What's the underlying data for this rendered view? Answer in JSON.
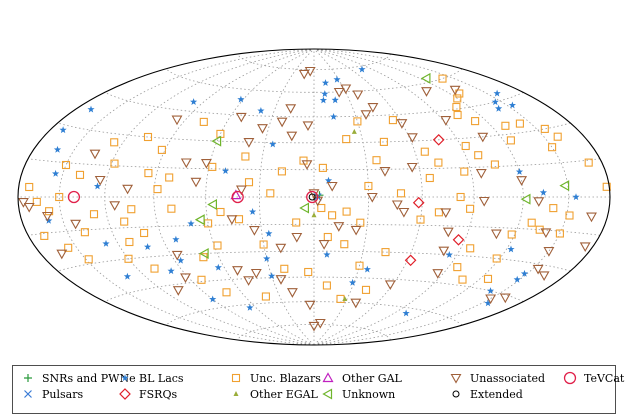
{
  "chart_data": {
    "type": "scatter",
    "projection": "hammer-aitoff (all-sky, galactic longitude vs latitude)",
    "grid": true,
    "legend_position": "bottom",
    "xlabel": "",
    "ylabel": "",
    "xlim": [
      -180,
      180
    ],
    "ylim": [
      -90,
      90
    ],
    "legend": [
      {
        "key": "snr",
        "label": "SNRs and PWNe",
        "marker": "plus",
        "color": "#2a9a3c"
      },
      {
        "key": "psr",
        "label": "Pulsars",
        "marker": "cross",
        "color": "#3a7bd5"
      },
      {
        "key": "bll",
        "label": "BL Lacs",
        "marker": "star",
        "color": "#2f7fd3"
      },
      {
        "key": "fsrq",
        "label": "FSRQs",
        "marker": "diamond",
        "color": "#e0202a"
      },
      {
        "key": "bcu",
        "label": "Unc. Blazars",
        "marker": "square",
        "color": "#f0a030"
      },
      {
        "key": "egal",
        "label": "Other EGAL",
        "marker": "tri-small",
        "color": "#9aad3a"
      },
      {
        "key": "gal",
        "label": "Other GAL",
        "marker": "tri-up",
        "color": "#c020c0"
      },
      {
        "key": "unk",
        "label": "Unknown",
        "marker": "tri-left",
        "color": "#6fb52c"
      },
      {
        "key": "unas",
        "label": "Unassociated",
        "marker": "tri-down",
        "color": "#a0603a"
      },
      {
        "key": "ext",
        "label": "Extended",
        "marker": "circle",
        "color": "#000000"
      },
      {
        "key": "tev",
        "label": "TeVCat",
        "marker": "circle-big",
        "color": "#e0204a"
      }
    ],
    "series": [
      {
        "key": "snr",
        "points": [
          [
            -3,
            1
          ]
        ]
      },
      {
        "key": "psr",
        "points": [
          [
            -2,
            0
          ]
        ]
      },
      {
        "key": "bll",
        "points": [
          [
            -76,
            73
          ],
          [
            -28,
            68
          ],
          [
            -13,
            66
          ],
          [
            -10,
            59
          ],
          [
            -18,
            55
          ],
          [
            -8,
            55
          ],
          [
            -158,
            48
          ],
          [
            -145,
            45
          ],
          [
            -154,
            42
          ],
          [
            -140,
            42
          ],
          [
            -14,
            45
          ],
          [
            62,
            54
          ],
          [
            98,
            50
          ],
          [
            40,
            48
          ],
          [
            168,
            38
          ],
          [
            162,
            20
          ],
          [
            155,
            10
          ],
          [
            125,
            5
          ],
          [
            -120,
            12
          ],
          [
            -133,
            2
          ],
          [
            -8,
            9
          ],
          [
            25,
            29
          ],
          [
            34,
            -8
          ],
          [
            70,
            -14
          ],
          [
            82,
            -22
          ],
          [
            102,
            -25
          ],
          [
            86,
            -33
          ],
          [
            98,
            -38
          ],
          [
            64,
            -38
          ],
          [
            66,
            -62
          ],
          [
            26,
            -20
          ],
          [
            -8,
            -32
          ],
          [
            -29,
            -48
          ],
          [
            -36,
            -40
          ],
          [
            -123,
            -25
          ],
          [
            -148,
            -35
          ],
          [
            -140,
            -45
          ],
          [
            -155,
            -50
          ],
          [
            -148,
            -38
          ],
          [
            -85,
            -30
          ],
          [
            30,
            -34
          ],
          [
            160,
            -10
          ],
          [
            128,
            -22
          ],
          [
            50,
            14
          ],
          [
            30,
            -44
          ],
          [
            -102,
            -63
          ],
          [
            90,
            -55
          ],
          [
            133,
            -38
          ],
          [
            -155,
            0
          ],
          [
            170,
            28
          ]
        ]
      },
      {
        "key": "fsrq",
        "points": [
          [
            -78,
            30
          ],
          [
            -86,
            -22
          ],
          [
            -62,
            -34
          ],
          [
            -58,
            -3
          ]
        ]
      },
      {
        "key": "bcu",
        "points": [
          [
            -178,
            4
          ],
          [
            -156,
            30
          ],
          [
            -150,
            22
          ],
          [
            -140,
            -5
          ],
          [
            -135,
            -15
          ],
          [
            -130,
            34
          ],
          [
            -125,
            27
          ],
          [
            -112,
            38
          ],
          [
            -110,
            46
          ],
          [
            -104,
            42
          ],
          [
            -106,
            16
          ],
          [
            -98,
            21
          ],
          [
            -93,
            26
          ],
          [
            -86,
            13
          ],
          [
            -82,
            0
          ],
          [
            -72,
            18
          ],
          [
            -66,
            24
          ],
          [
            -65,
            10
          ],
          [
            -55,
            42
          ],
          [
            -43,
            30
          ],
          [
            -36,
            20
          ],
          [
            -30,
            6
          ],
          [
            -26,
            -14
          ],
          [
            -18,
            -8
          ],
          [
            -10,
            -10
          ],
          [
            -5,
            16
          ],
          [
            6,
            20
          ],
          [
            -20,
            32
          ],
          [
            -30,
            42
          ],
          [
            -70,
            -8
          ],
          [
            -60,
            -12
          ],
          [
            -88,
            -6
          ],
          [
            -96,
            -26
          ],
          [
            -96,
            -36
          ],
          [
            -108,
            -42
          ],
          [
            -118,
            -30
          ],
          [
            -118,
            -18
          ],
          [
            -128,
            -12
          ],
          [
            -126,
            -40
          ],
          [
            -150,
            -16
          ],
          [
            -44,
            -30
          ],
          [
            -30,
            -38
          ],
          [
            -42,
            -52
          ],
          [
            -10,
            -50
          ],
          [
            4,
            -42
          ],
          [
            20,
            -40
          ],
          [
            30,
            -26
          ],
          [
            42,
            -12
          ],
          [
            52,
            -8
          ],
          [
            60,
            -14
          ],
          [
            58,
            -26
          ],
          [
            70,
            -32
          ],
          [
            80,
            -6
          ],
          [
            88,
            4
          ],
          [
            95,
            12
          ],
          [
            104,
            -6
          ],
          [
            110,
            -12
          ],
          [
            118,
            16
          ],
          [
            126,
            26
          ],
          [
            138,
            10
          ],
          [
            150,
            0
          ],
          [
            158,
            -6
          ],
          [
            166,
            -2
          ],
          [
            172,
            4
          ],
          [
            148,
            -28
          ],
          [
            120,
            -30
          ],
          [
            108,
            -36
          ],
          [
            82,
            -44
          ],
          [
            72,
            -52
          ],
          [
            100,
            -18
          ],
          [
            60,
            34
          ],
          [
            76,
            40
          ],
          [
            92,
            24
          ],
          [
            58,
            16
          ],
          [
            36,
            8
          ],
          [
            18,
            14
          ],
          [
            24,
            2
          ],
          [
            -8,
            -22
          ],
          [
            -18,
            -26
          ],
          [
            -48,
            2
          ],
          [
            -24,
            -58
          ],
          [
            -152,
            -8
          ],
          [
            -160,
            26
          ],
          [
            -170,
            14
          ],
          [
            -142,
            34
          ],
          [
            -140,
            60
          ],
          [
            -128,
            52
          ],
          [
            -120,
            50
          ],
          [
            40,
            22
          ],
          [
            82,
            10
          ],
          [
            112,
            -22
          ],
          [
            138,
            -16
          ],
          [
            150,
            14
          ],
          [
            156,
            -22
          ],
          [
            106,
            30
          ],
          [
            128,
            -8
          ],
          [
            168,
            -16
          ],
          [
            42,
            -56
          ],
          [
            -4,
            -6
          ],
          [
            10,
            -14
          ]
        ]
      },
      {
        "key": "egal",
        "points": [
          [
            -26,
            36
          ],
          [
            0,
            -10
          ],
          [
            -28,
            -58
          ]
        ]
      },
      {
        "key": "gal",
        "points": [
          [
            43,
            1
          ]
        ]
      },
      {
        "key": "unk",
        "points": [
          [
            -126,
            62
          ],
          [
            -148,
            5
          ],
          [
            -122,
            -1
          ],
          [
            5,
            -6
          ],
          [
            56,
            -4
          ],
          [
            64,
            -12
          ],
          [
            68,
            -30
          ],
          [
            60,
            30
          ]
        ]
      },
      {
        "key": "unas",
        "points": [
          [
            -40,
            58
          ],
          [
            -32,
            62
          ],
          [
            -24,
            60
          ],
          [
            -46,
            50
          ],
          [
            -38,
            46
          ],
          [
            -60,
            40
          ],
          [
            -62,
            32
          ],
          [
            -56,
            16
          ],
          [
            -40,
            14
          ],
          [
            -32,
            0
          ],
          [
            -46,
            -4
          ],
          [
            -50,
            -8
          ],
          [
            -74,
            -8
          ],
          [
            -78,
            -18
          ],
          [
            -80,
            -28
          ],
          [
            -108,
            -18
          ],
          [
            -140,
            -16
          ],
          [
            -150,
            -24
          ],
          [
            -164,
            -34
          ],
          [
            -154,
            -32
          ],
          [
            -160,
            -46
          ],
          [
            -130,
            54
          ],
          [
            -108,
            30
          ],
          [
            -120,
            8
          ],
          [
            -130,
            -2
          ],
          [
            -96,
            12
          ],
          [
            -58,
            -48
          ],
          [
            -40,
            -60
          ],
          [
            -10,
            -74
          ],
          [
            0,
            -76
          ],
          [
            4,
            -62
          ],
          [
            18,
            -54
          ],
          [
            24,
            -46
          ],
          [
            40,
            -42
          ],
          [
            48,
            -46
          ],
          [
            52,
            -40
          ],
          [
            86,
            -30
          ],
          [
            92,
            -42
          ],
          [
            46,
            -12
          ],
          [
            34,
            -18
          ],
          [
            20,
            -28
          ],
          [
            10,
            -22
          ],
          [
            -14,
            -16
          ],
          [
            -6,
            -26
          ],
          [
            -2,
            -2
          ],
          [
            -10,
            6
          ],
          [
            4,
            40
          ],
          [
            14,
            34
          ],
          [
            18,
            50
          ],
          [
            22,
            42
          ],
          [
            34,
            38
          ],
          [
            40,
            30
          ],
          [
            52,
            44
          ],
          [
            62,
            18
          ],
          [
            66,
            8
          ],
          [
            74,
            18
          ],
          [
            96,
            40
          ],
          [
            106,
            4
          ],
          [
            114,
            -4
          ],
          [
            124,
            8
          ],
          [
            134,
            20
          ],
          [
            142,
            -12
          ],
          [
            160,
            -8
          ],
          [
            164,
            -24
          ],
          [
            172,
            -4
          ],
          [
            176,
            -2
          ],
          [
            6,
            74
          ],
          [
            14,
            72
          ],
          [
            4,
            18
          ],
          [
            0,
            2
          ],
          [
            -24,
            -18
          ],
          [
            40,
            4
          ],
          [
            -150,
            -48
          ],
          [
            -92,
            40
          ],
          [
            -96,
            -2
          ],
          [
            -86,
            -40
          ],
          [
            -104,
            56
          ],
          [
            108,
            -48
          ],
          [
            -168,
            -8
          ],
          [
            -174,
            -20
          ]
        ]
      },
      {
        "key": "ext",
        "points": [
          [
            1,
            0
          ]
        ]
      },
      {
        "key": "tev",
        "points": [
          [
            1,
            0
          ],
          [
            42,
            0
          ],
          [
            140,
            0
          ]
        ]
      }
    ]
  }
}
